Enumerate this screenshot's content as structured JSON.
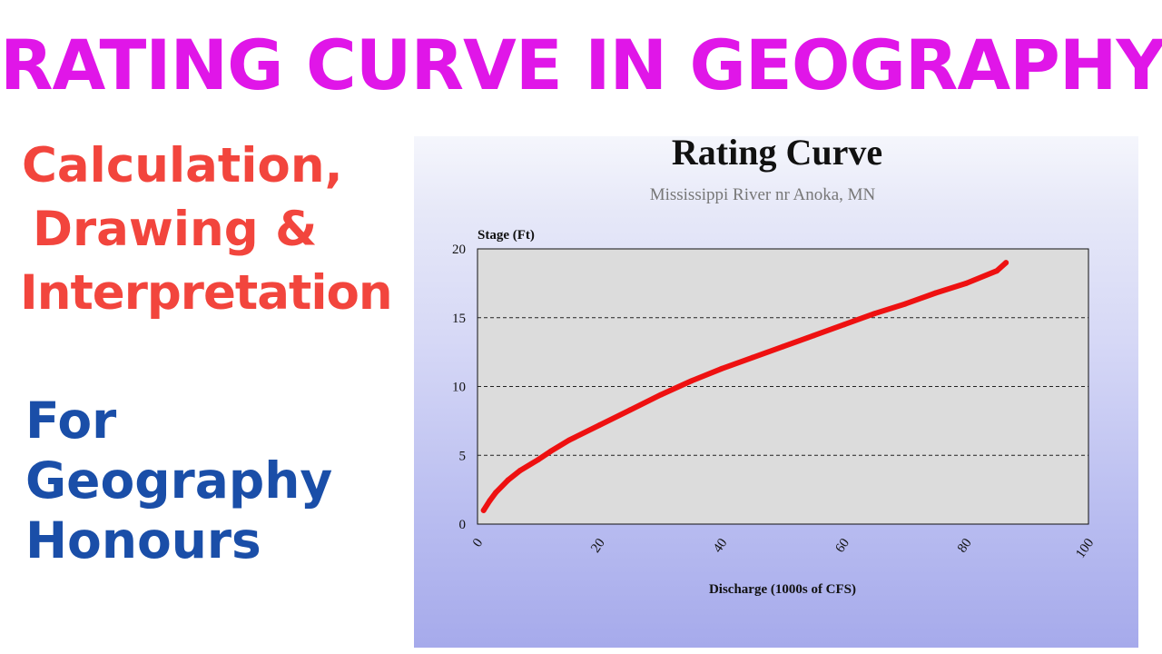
{
  "headline": "RATING CURVE IN GEOGRAPHY",
  "left_text": {
    "lines": [
      "Calculation,",
      "Drawing &",
      "Interpretation"
    ]
  },
  "audience_text": {
    "lines": [
      "For",
      "Geography",
      "Honours"
    ]
  },
  "colors": {
    "headline": "#e016e8",
    "subheading": "#f2453d",
    "audience": "#1a4ea8",
    "curve": "#ee1111",
    "plot_bg": "#dcdcdc"
  },
  "chart_data": {
    "type": "line",
    "title": "Rating Curve",
    "subtitle": "Mississippi River nr Anoka, MN",
    "xlabel": "Discharge (1000s of CFS)",
    "ylabel": "Stage (Ft)",
    "xlim": [
      0,
      100
    ],
    "ylim": [
      0,
      20
    ],
    "x_ticks": [
      0,
      20,
      40,
      60,
      80,
      100
    ],
    "y_ticks": [
      0,
      5,
      10,
      15,
      20
    ],
    "grid": "horizontal dashed at 5, 10, 15",
    "series": [
      {
        "color": "#ee1111",
        "x": [
          1,
          2,
          3,
          5,
          7,
          10,
          12,
          15,
          20,
          25,
          30,
          35,
          40,
          45,
          50,
          55,
          60,
          65,
          70,
          75,
          80,
          85,
          86.5
        ],
        "y": [
          1,
          1.7,
          2.3,
          3.2,
          3.9,
          4.7,
          5.3,
          6.1,
          7.2,
          8.3,
          9.4,
          10.4,
          11.3,
          12.1,
          12.9,
          13.7,
          14.5,
          15.3,
          16.0,
          16.8,
          17.5,
          18.4,
          19.0
        ]
      }
    ]
  }
}
